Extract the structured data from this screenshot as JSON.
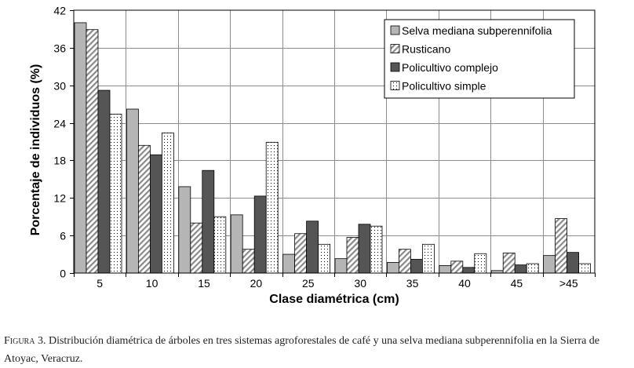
{
  "chart_data": {
    "type": "bar",
    "title": "",
    "xlabel": "Clase diamétrica (cm)",
    "ylabel": "Porcentaje de individuos (%)",
    "ylim": [
      0,
      42
    ],
    "yticks": [
      0,
      6,
      12,
      18,
      24,
      30,
      36,
      42
    ],
    "grid": true,
    "legend_position": "top-right",
    "categories": [
      "5",
      "10",
      "15",
      "20",
      "25",
      "30",
      "35",
      "40",
      "45",
      ">45"
    ],
    "series": [
      {
        "name": "Selva mediana subperennifolia",
        "pattern": "solid",
        "color": "#b5b5b5",
        "values": [
          40.0,
          26.2,
          13.8,
          9.3,
          3.0,
          2.3,
          1.7,
          1.2,
          0.4,
          2.8
        ]
      },
      {
        "name": "Rusticano",
        "pattern": "diagonal-hatch",
        "color": "#8a8a8a",
        "values": [
          38.9,
          20.4,
          8.0,
          3.8,
          6.3,
          5.7,
          3.8,
          1.9,
          3.2,
          8.7
        ]
      },
      {
        "name": "Policultivo complejo",
        "pattern": "solid",
        "color": "#555555",
        "values": [
          29.2,
          18.9,
          16.4,
          12.3,
          8.3,
          7.8,
          2.2,
          0.9,
          1.3,
          3.3
        ]
      },
      {
        "name": "Policultivo simple",
        "pattern": "dotted",
        "color": "#000000",
        "values": [
          25.4,
          22.4,
          9.0,
          20.9,
          4.6,
          7.5,
          4.6,
          3.1,
          1.5,
          1.5
        ]
      }
    ]
  },
  "caption": {
    "lead": "Figura 3.",
    "text": " Distribución diamétrica de árboles en tres sistemas agroforestales de café y una selva mediana subperennifolia en la Sierra de Atoyac, Veracruz."
  }
}
